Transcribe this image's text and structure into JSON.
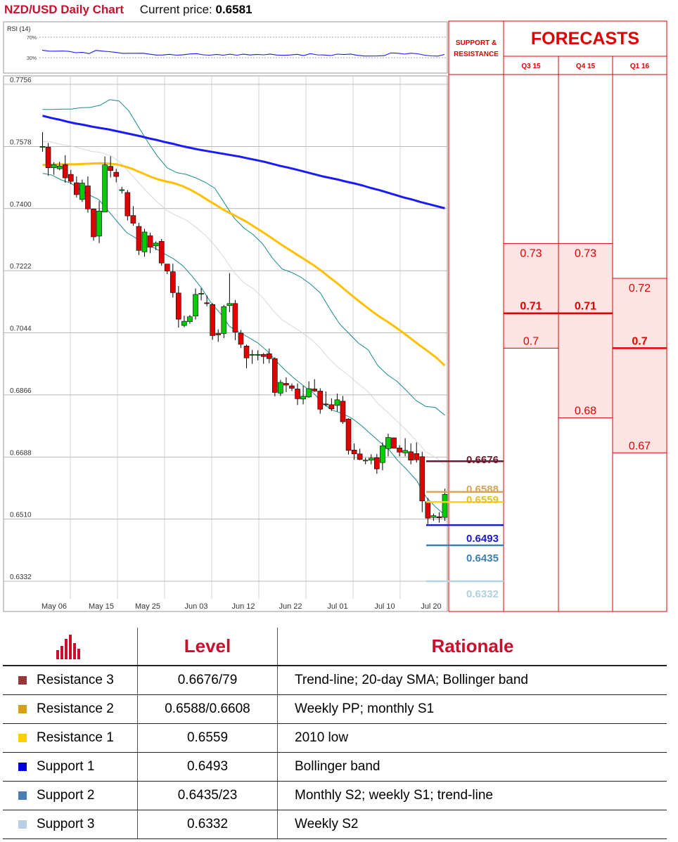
{
  "header": {
    "title": "NZD/USD Daily Chart",
    "price_label": "Current price:",
    "price_value": "0.6581"
  },
  "colors": {
    "up": "#00cc00",
    "down": "#e00000",
    "sma200": "#1a1aff",
    "sma50": "#ffc000",
    "band": "#1a8a8a",
    "sma20": "#d8d8d8",
    "forecast": "#e00000"
  },
  "chart_data": [
    {
      "type": "line",
      "title": "RSI (14)",
      "yticks": [
        "70%",
        "30%"
      ],
      "ylim": [
        0,
        100
      ],
      "series": [
        {
          "values": [
            44.7,
            42.9,
            42.8,
            43.1,
            42.3,
            39.7,
            40.6,
            37.9,
            44.3,
            42.9,
            41.8,
            40.3,
            38.5,
            38.6,
            38.6,
            38.7,
            36.8,
            35.2,
            35.4,
            36.6,
            34.9,
            35.7,
            37.2,
            37.9,
            35.6,
            34.9,
            36.4,
            35.0,
            36.9,
            34.9,
            36.9,
            35.4,
            36.4,
            35.6,
            37.1,
            35.2,
            34.7,
            35.3,
            36.6,
            34.3,
            37.9,
            35.6,
            35.3,
            34.1,
            37.0,
            36.2,
            37.1,
            34.6,
            33.3,
            33.3,
            33.4,
            34.0,
            39.3,
            38.8,
            37.0,
            38.7,
            37.7,
            35.0,
            33.6,
            33.2,
            36.3
          ]
        }
      ]
    },
    {
      "type": "candlestick",
      "ylim": [
        0.627,
        0.7756
      ],
      "y_ticks": [
        "0.7756",
        "0.7578",
        "0.7400",
        "0.7222",
        "0.7044",
        "0.6866",
        "0.6688",
        "0.6510",
        "0.6332"
      ],
      "x_labels": [
        "May 06",
        "May 15",
        "May 25",
        "Jun 03",
        "Jun 12",
        "Jun 22",
        "Jul 01",
        "Jul 10",
        "Jul 20"
      ],
      "candles": [
        {
          "o": 0.7577,
          "h": 0.7619,
          "l": 0.7563,
          "c": 0.7578
        },
        {
          "o": 0.7576,
          "h": 0.7588,
          "l": 0.7494,
          "c": 0.7517
        },
        {
          "o": 0.7517,
          "h": 0.7533,
          "l": 0.7497,
          "c": 0.7526
        },
        {
          "o": 0.7514,
          "h": 0.7534,
          "l": 0.751,
          "c": 0.7522
        },
        {
          "o": 0.7526,
          "h": 0.7553,
          "l": 0.7474,
          "c": 0.7488
        },
        {
          "o": 0.7498,
          "h": 0.7511,
          "l": 0.747,
          "c": 0.7478
        },
        {
          "o": 0.7474,
          "h": 0.7492,
          "l": 0.7432,
          "c": 0.744
        },
        {
          "o": 0.7426,
          "h": 0.7483,
          "l": 0.7419,
          "c": 0.7473
        },
        {
          "o": 0.7465,
          "h": 0.7492,
          "l": 0.7388,
          "c": 0.7399
        },
        {
          "o": 0.7399,
          "h": 0.74,
          "l": 0.7308,
          "c": 0.7319
        },
        {
          "o": 0.7321,
          "h": 0.7421,
          "l": 0.7301,
          "c": 0.7393
        },
        {
          "o": 0.739,
          "h": 0.7549,
          "l": 0.7389,
          "c": 0.7525
        },
        {
          "o": 0.7521,
          "h": 0.755,
          "l": 0.7489,
          "c": 0.7509
        },
        {
          "o": 0.7504,
          "h": 0.7514,
          "l": 0.7475,
          "c": 0.7492
        },
        {
          "o": 0.7454,
          "h": 0.7462,
          "l": 0.7443,
          "c": 0.7454
        },
        {
          "o": 0.7446,
          "h": 0.7453,
          "l": 0.7366,
          "c": 0.7379
        },
        {
          "o": 0.738,
          "h": 0.7407,
          "l": 0.7351,
          "c": 0.7358
        },
        {
          "o": 0.7349,
          "h": 0.7359,
          "l": 0.7267,
          "c": 0.728
        },
        {
          "o": 0.7276,
          "h": 0.7342,
          "l": 0.7262,
          "c": 0.7333
        },
        {
          "o": 0.7322,
          "h": 0.7331,
          "l": 0.7272,
          "c": 0.7289
        },
        {
          "o": 0.7293,
          "h": 0.7306,
          "l": 0.7281,
          "c": 0.7301
        },
        {
          "o": 0.7306,
          "h": 0.7313,
          "l": 0.7236,
          "c": 0.7244
        },
        {
          "o": 0.7241,
          "h": 0.7241,
          "l": 0.7212,
          "c": 0.7221
        },
        {
          "o": 0.7219,
          "h": 0.7242,
          "l": 0.7145,
          "c": 0.7159
        },
        {
          "o": 0.7158,
          "h": 0.7178,
          "l": 0.7059,
          "c": 0.7083
        },
        {
          "o": 0.7065,
          "h": 0.7093,
          "l": 0.706,
          "c": 0.7077
        },
        {
          "o": 0.7076,
          "h": 0.7095,
          "l": 0.707,
          "c": 0.709
        },
        {
          "o": 0.7092,
          "h": 0.7171,
          "l": 0.7082,
          "c": 0.7154
        },
        {
          "o": 0.7155,
          "h": 0.7172,
          "l": 0.7137,
          "c": 0.7157
        },
        {
          "o": 0.713,
          "h": 0.7151,
          "l": 0.712,
          "c": 0.7128
        },
        {
          "o": 0.7125,
          "h": 0.7129,
          "l": 0.7024,
          "c": 0.7036
        },
        {
          "o": 0.7042,
          "h": 0.7054,
          "l": 0.7018,
          "c": 0.7038
        },
        {
          "o": 0.7042,
          "h": 0.7124,
          "l": 0.7029,
          "c": 0.7119
        },
        {
          "o": 0.7122,
          "h": 0.7215,
          "l": 0.7103,
          "c": 0.7128
        },
        {
          "o": 0.7128,
          "h": 0.7138,
          "l": 0.7023,
          "c": 0.7046
        },
        {
          "o": 0.7043,
          "h": 0.7052,
          "l": 0.7001,
          "c": 0.7011
        },
        {
          "o": 0.7006,
          "h": 0.701,
          "l": 0.6942,
          "c": 0.6972
        },
        {
          "o": 0.698,
          "h": 0.6995,
          "l": 0.6955,
          "c": 0.6982
        },
        {
          "o": 0.6982,
          "h": 0.6994,
          "l": 0.6965,
          "c": 0.6982
        },
        {
          "o": 0.6982,
          "h": 0.6986,
          "l": 0.6955,
          "c": 0.6976
        },
        {
          "o": 0.6984,
          "h": 0.6999,
          "l": 0.6957,
          "c": 0.697
        },
        {
          "o": 0.697,
          "h": 0.6974,
          "l": 0.6862,
          "c": 0.6873
        },
        {
          "o": 0.6871,
          "h": 0.6909,
          "l": 0.6863,
          "c": 0.6902
        },
        {
          "o": 0.6899,
          "h": 0.6916,
          "l": 0.6874,
          "c": 0.6894
        },
        {
          "o": 0.6892,
          "h": 0.6899,
          "l": 0.6877,
          "c": 0.6885
        },
        {
          "o": 0.6883,
          "h": 0.6899,
          "l": 0.6837,
          "c": 0.6855
        },
        {
          "o": 0.6854,
          "h": 0.6892,
          "l": 0.6839,
          "c": 0.6862
        },
        {
          "o": 0.686,
          "h": 0.6905,
          "l": 0.6858,
          "c": 0.6884
        },
        {
          "o": 0.6883,
          "h": 0.6911,
          "l": 0.6875,
          "c": 0.6877
        },
        {
          "o": 0.6877,
          "h": 0.6885,
          "l": 0.6812,
          "c": 0.6825
        },
        {
          "o": 0.684,
          "h": 0.6876,
          "l": 0.6833,
          "c": 0.6839
        },
        {
          "o": 0.6838,
          "h": 0.6856,
          "l": 0.682,
          "c": 0.6826
        },
        {
          "o": 0.6836,
          "h": 0.687,
          "l": 0.6818,
          "c": 0.6852
        },
        {
          "o": 0.6848,
          "h": 0.6863,
          "l": 0.6783,
          "c": 0.6789
        },
        {
          "o": 0.6797,
          "h": 0.6799,
          "l": 0.6695,
          "c": 0.6707
        },
        {
          "o": 0.6708,
          "h": 0.6727,
          "l": 0.668,
          "c": 0.6697
        },
        {
          "o": 0.6697,
          "h": 0.6712,
          "l": 0.6679,
          "c": 0.6681
        },
        {
          "o": 0.6679,
          "h": 0.6686,
          "l": 0.6667,
          "c": 0.6679
        },
        {
          "o": 0.6679,
          "h": 0.6696,
          "l": 0.6667,
          "c": 0.6685
        },
        {
          "o": 0.6686,
          "h": 0.6697,
          "l": 0.664,
          "c": 0.6654
        },
        {
          "o": 0.6672,
          "h": 0.673,
          "l": 0.665,
          "c": 0.672
        },
        {
          "o": 0.6712,
          "h": 0.6755,
          "l": 0.669,
          "c": 0.6744
        },
        {
          "o": 0.6743,
          "h": 0.6744,
          "l": 0.6712,
          "c": 0.6713
        },
        {
          "o": 0.6714,
          "h": 0.6722,
          "l": 0.669,
          "c": 0.6702
        },
        {
          "o": 0.67,
          "h": 0.6742,
          "l": 0.669,
          "c": 0.6707
        },
        {
          "o": 0.6703,
          "h": 0.6727,
          "l": 0.6667,
          "c": 0.6679
        },
        {
          "o": 0.6698,
          "h": 0.673,
          "l": 0.6672,
          "c": 0.668
        },
        {
          "o": 0.6689,
          "h": 0.6703,
          "l": 0.653,
          "c": 0.6562
        },
        {
          "o": 0.656,
          "h": 0.6571,
          "l": 0.6496,
          "c": 0.6513
        },
        {
          "o": 0.6515,
          "h": 0.6526,
          "l": 0.6505,
          "c": 0.652
        },
        {
          "o": 0.6517,
          "h": 0.653,
          "l": 0.65,
          "c": 0.6514
        },
        {
          "o": 0.6515,
          "h": 0.6597,
          "l": 0.6505,
          "c": 0.6581
        }
      ],
      "sma200": [
        0.7666,
        0.766,
        0.7655,
        0.7649,
        0.7644,
        0.764,
        0.7635,
        0.7631,
        0.7627,
        0.7622,
        0.7617,
        0.7612,
        0.7607,
        0.7601,
        0.7596,
        0.759,
        0.7585,
        0.7579,
        0.7574,
        0.7569,
        0.7565,
        0.7561,
        0.7557,
        0.7553,
        0.7549,
        0.7544,
        0.7539,
        0.7534,
        0.7528,
        0.7522,
        0.7517,
        0.7511,
        0.7505,
        0.7499,
        0.7493,
        0.7488,
        0.7483,
        0.7477,
        0.7472,
        0.7466,
        0.7459,
        0.7453,
        0.7446,
        0.7439,
        0.7432,
        0.7426,
        0.7419,
        0.7413,
        0.7407,
        0.7401
      ],
      "sma50": [
        0.7525,
        0.7526,
        0.7527,
        0.7527,
        0.7527,
        0.7528,
        0.7529,
        0.753,
        0.7529,
        0.7527,
        0.7521,
        0.7513,
        0.7503,
        0.7493,
        0.7484,
        0.7478,
        0.7473,
        0.7465,
        0.7454,
        0.7441,
        0.7426,
        0.7412,
        0.7397,
        0.7385,
        0.7373,
        0.736,
        0.7345,
        0.733,
        0.7314,
        0.7298,
        0.7283,
        0.7268,
        0.7253,
        0.7238,
        0.7221,
        0.7202,
        0.7184,
        0.7164,
        0.7145,
        0.7126,
        0.7108,
        0.7091,
        0.7076,
        0.706,
        0.7043,
        0.7025,
        0.7007,
        0.699,
        0.6972,
        0.695
      ],
      "upper_band": [
        0.7684,
        0.7684,
        0.7685,
        0.7685,
        0.7689,
        0.769,
        0.7696,
        0.7712,
        0.7708,
        0.768,
        0.7635,
        0.759,
        0.755,
        0.7517,
        0.7503,
        0.7498,
        0.7488,
        0.7475,
        0.7458,
        0.7415,
        0.7373,
        0.7345,
        0.7325,
        0.7298,
        0.7258,
        0.7227,
        0.7217,
        0.7203,
        0.7183,
        0.7158,
        0.7112,
        0.707,
        0.7042,
        0.7014,
        0.6995,
        0.695,
        0.6924,
        0.6905,
        0.6878,
        0.685,
        0.6833,
        0.683,
        0.6808
      ],
      "lower_band": [
        0.7501,
        0.7496,
        0.7482,
        0.7473,
        0.7455,
        0.7439,
        0.7426,
        0.7394,
        0.7362,
        0.7331,
        0.7315,
        0.73,
        0.7287,
        0.7271,
        0.7256,
        0.7236,
        0.7206,
        0.7172,
        0.713,
        0.71,
        0.7062,
        0.7046,
        0.7031,
        0.7015,
        0.6992,
        0.6962,
        0.6935,
        0.6911,
        0.689,
        0.687,
        0.6841,
        0.6822,
        0.6813,
        0.68,
        0.678,
        0.6756,
        0.6732,
        0.671,
        0.6677,
        0.665,
        0.662,
        0.6573,
        0.6545,
        0.6522
      ]
    }
  ],
  "levels_panel": {
    "title": "SUPPORT & RESISTANCE",
    "levels": [
      {
        "value": 0.6676,
        "label": "0.6676",
        "color": "#6b1a2f",
        "text_color": "#6b1a2f"
      },
      {
        "value": 0.6588,
        "label": "0.6588",
        "color": "#d4a55a",
        "text_color": "#d4a55a"
      },
      {
        "value": 0.6559,
        "label": "0.6559",
        "color": "#ffd21f",
        "text_color": "#e8c020"
      },
      {
        "value": 0.6493,
        "label": "0.6493",
        "color": "#1a1acc",
        "text_color": "#1a1acc"
      },
      {
        "value": 0.6435,
        "label": "0.6435",
        "color": "#3c7fb1",
        "text_color": "#3c7fb1"
      },
      {
        "value": 0.6332,
        "label": "0.6332",
        "color": "#b8d4e0",
        "text_color": "#b0cfdc"
      }
    ]
  },
  "forecasts": {
    "title": "FORECASTS",
    "columns": [
      {
        "label": "Q3 15",
        "high": 0.73,
        "mid": 0.71,
        "low": 0.7,
        "high_label": "0.73",
        "mid_label": "0.71",
        "low_label": "0.7"
      },
      {
        "label": "Q4 15",
        "high": 0.73,
        "mid": 0.71,
        "low": 0.68,
        "high_label": "0.73",
        "mid_label": "0.71",
        "low_label": "0.68"
      },
      {
        "label": "Q1 16",
        "high": 0.72,
        "mid": 0.7,
        "low": 0.67,
        "high_label": "0.72",
        "mid_label": "0.7",
        "low_label": "0.67"
      }
    ]
  },
  "table": {
    "headers": {
      "level": "Level",
      "rationale": "Rationale"
    },
    "icon": "bar-chart-icon",
    "rows": [
      {
        "name": "Resistance 3",
        "level": "0.6676/79",
        "rationale": "Trend-line; 20-day SMA; Bollinger band",
        "color": "#953735"
      },
      {
        "name": "Resistance 2",
        "level": "0.6588/0.6608",
        "rationale": "Weekly PP; monthly S1",
        "color": "#d4a017"
      },
      {
        "name": "Resistance 1",
        "level": "0.6559",
        "rationale": "2010 low",
        "color": "#ffd000"
      },
      {
        "name": "Support 1",
        "level": "0.6493",
        "rationale": "Bollinger band",
        "color": "#0000dd"
      },
      {
        "name": "Support 2",
        "level": "0.6435/23",
        "rationale": "Monthly S2; weekly S1; trend-line",
        "color": "#4a7fb5"
      },
      {
        "name": "Support 3",
        "level": "0.6332",
        "rationale": "Weekly S2",
        "color": "#b8cfe6"
      }
    ]
  }
}
